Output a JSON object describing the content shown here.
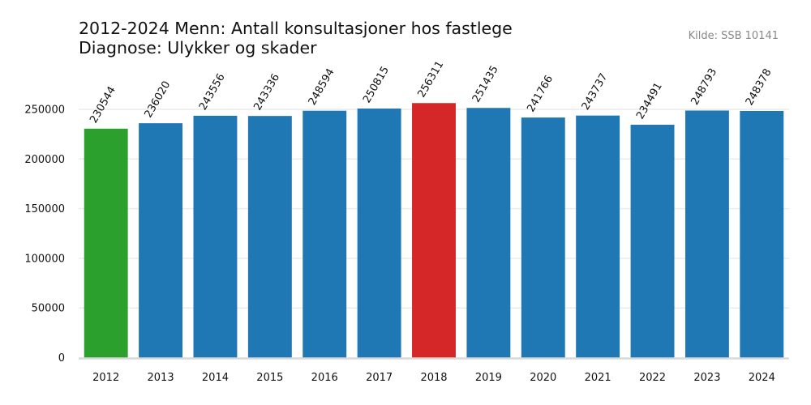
{
  "header": {
    "title": "2012-2024 Menn: Antall konsultasjoner hos fastlege\nDiagnose: Ulykker og skader",
    "source": "Kilde: SSB 10141"
  },
  "colors": {
    "default": "#1f77b4",
    "min": "#2ca02c",
    "max": "#d62728",
    "grid": "#ebebeb",
    "axis": "#d9d9d9"
  },
  "chart_data": {
    "type": "bar",
    "title": "2012-2024 Menn: Antall konsultasjoner hos fastlege\nDiagnose: Ulykker og skader",
    "categories": [
      "2012",
      "2013",
      "2014",
      "2015",
      "2016",
      "2017",
      "2018",
      "2019",
      "2020",
      "2021",
      "2022",
      "2023",
      "2024"
    ],
    "values": [
      230544,
      236020,
      243556,
      243336,
      248594,
      250815,
      256311,
      251435,
      241766,
      243737,
      234491,
      248793,
      248378
    ],
    "highlight": {
      "min": "2012",
      "max": "2018"
    },
    "y_ticks": [
      0,
      50000,
      100000,
      150000,
      200000,
      250000
    ],
    "ylim": [
      0,
      290000
    ],
    "xlabel": "",
    "ylabel": "",
    "grid": "horizontal",
    "legend": "none"
  }
}
